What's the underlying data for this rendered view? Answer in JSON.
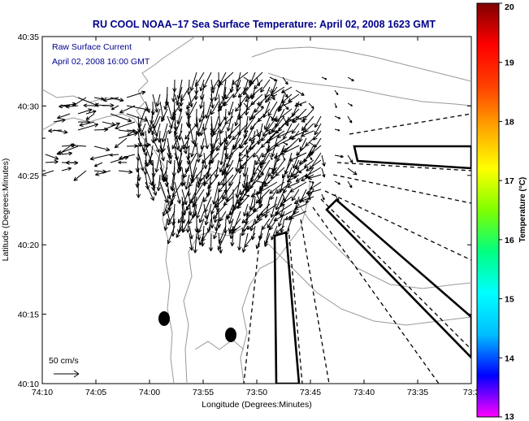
{
  "figure": {
    "title": "RU COOL  NOAA–17  Sea Surface Temperature:  April 02, 2008 1623 GMT",
    "title_color": "#00008b",
    "annotation_color": "#00008b",
    "overlay_line1": "Raw Surface Current",
    "overlay_line2": "April 02, 2008 16:00 GMT",
    "scale_label": "50 cm/s",
    "xlabel": "Longitude (Degrees:Minutes)",
    "ylabel": "Latitude (Degrees:Minutes)",
    "xticks": [
      "74:10",
      "74:05",
      "74:00",
      "73:55",
      "73:50",
      "73:45",
      "73:40",
      "73:35",
      "73:3"
    ],
    "yticks": [
      "40:35",
      "40:30",
      "40:25",
      "40:20",
      "40:15",
      "40:10"
    ]
  },
  "colorbar": {
    "label": "Temperature (°C)",
    "min": 13,
    "max": 20,
    "ticks": [
      "20",
      "19",
      "18",
      "17",
      "16",
      "15",
      "14",
      "13"
    ],
    "colors": [
      "#ff00ff",
      "#0000ff",
      "#00bfff",
      "#00ffff",
      "#00ff80",
      "#80ff00",
      "#ffff00",
      "#ffa500",
      "#ff4000",
      "#ff0000",
      "#800000"
    ]
  }
}
